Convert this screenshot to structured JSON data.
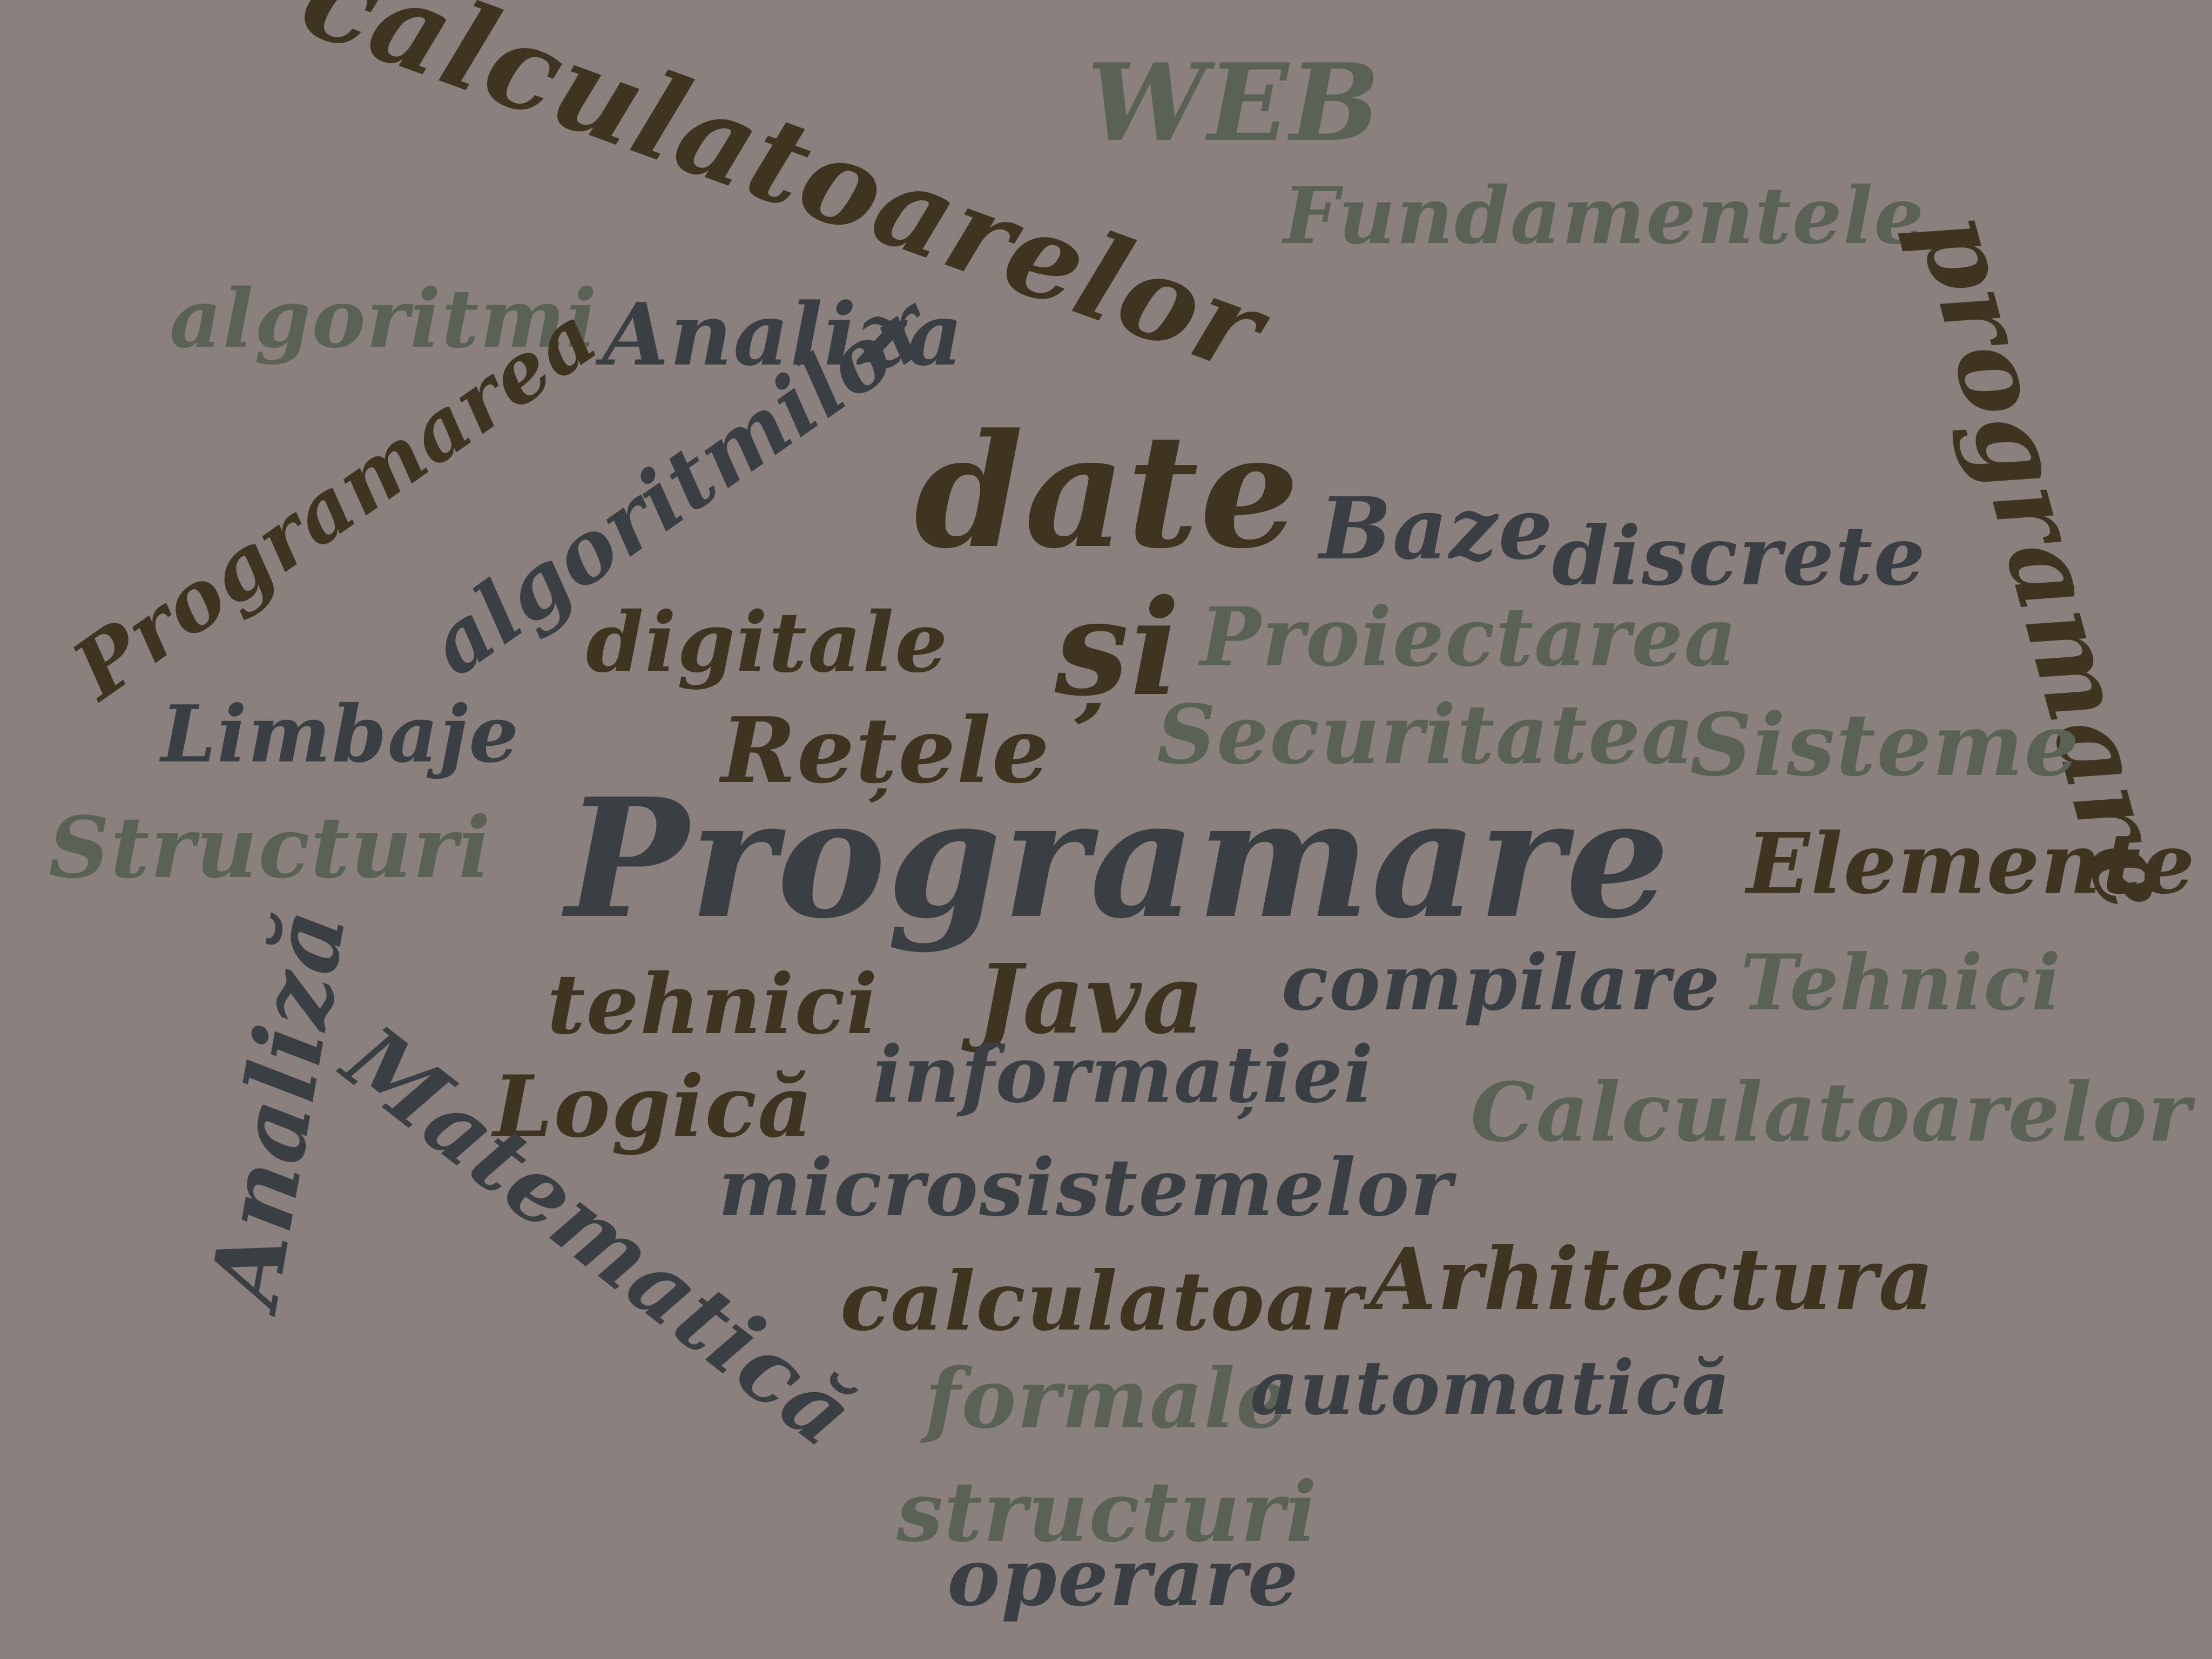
{
  "palette": {
    "background": "#8a817f",
    "dark_brown": "#3e3420",
    "slate": "#3a3f44",
    "sage": "#5a6255"
  },
  "words": [
    {
      "text": "calculatoarelor",
      "tone": "dark_brown",
      "rotation_deg": 20
    },
    {
      "text": "WEB",
      "tone": "sage",
      "rotation_deg": 0
    },
    {
      "text": "Fundamentele",
      "tone": "sage",
      "rotation_deg": 0
    },
    {
      "text": "algoritmi",
      "tone": "sage",
      "rotation_deg": 0
    },
    {
      "text": "Analiza",
      "tone": "slate",
      "rotation_deg": 0
    },
    {
      "text": "programare",
      "tone": "dark_brown",
      "rotation_deg": 75
    },
    {
      "text": "Programarea",
      "tone": "dark_brown",
      "rotation_deg": -35
    },
    {
      "text": "algoritmilor",
      "tone": "slate",
      "rotation_deg": -35
    },
    {
      "text": "date",
      "tone": "dark_brown",
      "rotation_deg": 0
    },
    {
      "text": "Baze",
      "tone": "slate",
      "rotation_deg": 0
    },
    {
      "text": "discrete",
      "tone": "slate",
      "rotation_deg": 0
    },
    {
      "text": "digitale",
      "tone": "dark_brown",
      "rotation_deg": 0
    },
    {
      "text": "și",
      "tone": "dark_brown",
      "rotation_deg": 0
    },
    {
      "text": "Proiectarea",
      "tone": "sage",
      "rotation_deg": 0
    },
    {
      "text": "Limbaje",
      "tone": "slate",
      "rotation_deg": 0
    },
    {
      "text": "Rețele",
      "tone": "dark_brown",
      "rotation_deg": 0
    },
    {
      "text": "Securitatea",
      "tone": "sage",
      "rotation_deg": 0
    },
    {
      "text": "Sisteme",
      "tone": "sage",
      "rotation_deg": 0
    },
    {
      "text": "Structuri",
      "tone": "sage",
      "rotation_deg": 0
    },
    {
      "text": "Programare",
      "tone": "slate",
      "rotation_deg": 0
    },
    {
      "text": "Elemente",
      "tone": "dark_brown",
      "rotation_deg": 0
    },
    {
      "text": "Analiză",
      "tone": "slate",
      "rotation_deg": -80
    },
    {
      "text": "tehnici",
      "tone": "dark_brown",
      "rotation_deg": 0
    },
    {
      "text": "Java",
      "tone": "dark_brown",
      "rotation_deg": 0
    },
    {
      "text": "compilare",
      "tone": "slate",
      "rotation_deg": 0
    },
    {
      "text": "Tehnici",
      "tone": "sage",
      "rotation_deg": 0
    },
    {
      "text": "informației",
      "tone": "slate",
      "rotation_deg": 0
    },
    {
      "text": "Logică",
      "tone": "dark_brown",
      "rotation_deg": 0
    },
    {
      "text": "Matematică",
      "tone": "slate",
      "rotation_deg": 38
    },
    {
      "text": "Calculatoarelor",
      "tone": "sage",
      "rotation_deg": 0
    },
    {
      "text": "microsistemelor",
      "tone": "slate",
      "rotation_deg": 0
    },
    {
      "text": "calculatoar",
      "tone": "dark_brown",
      "rotation_deg": 0
    },
    {
      "text": "Arhitectura",
      "tone": "dark_brown",
      "rotation_deg": 0
    },
    {
      "text": "formale",
      "tone": "sage",
      "rotation_deg": 0
    },
    {
      "text": "automatică",
      "tone": "slate",
      "rotation_deg": 0
    },
    {
      "text": "structuri",
      "tone": "sage",
      "rotation_deg": 0
    },
    {
      "text": "operare",
      "tone": "slate",
      "rotation_deg": 0
    }
  ]
}
